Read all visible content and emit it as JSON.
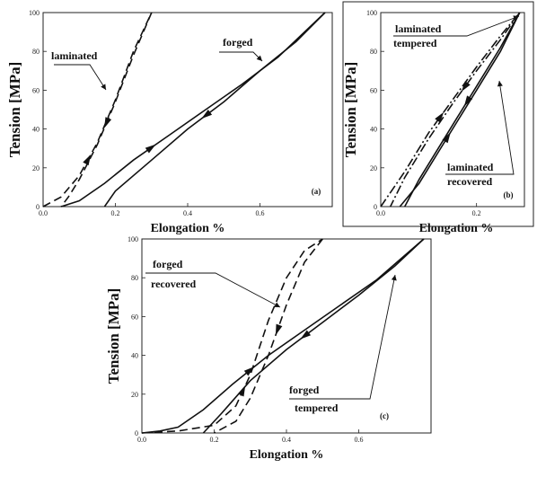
{
  "chart_data": [
    {
      "type": "line",
      "panel_label": "(a)",
      "xlabel": "Elongation %",
      "ylabel": "Tension [MPa]",
      "xlim": [
        0,
        0.8
      ],
      "ylim": [
        0,
        100
      ],
      "xticks": [
        "0.0",
        "0.2",
        "0.4",
        "0.6"
      ],
      "yticks": [
        "0",
        "20",
        "40",
        "60",
        "80",
        "100"
      ],
      "series": [
        {
          "name": "laminated",
          "style": "dashed",
          "loading": [
            [
              0.0,
              0
            ],
            [
              0.05,
              5
            ],
            [
              0.1,
              16
            ],
            [
              0.15,
              33
            ],
            [
              0.2,
              55
            ],
            [
              0.25,
              80
            ],
            [
              0.3,
              100
            ]
          ],
          "unloading": [
            [
              0.3,
              100
            ],
            [
              0.25,
              78
            ],
            [
              0.2,
              54
            ],
            [
              0.15,
              32
            ],
            [
              0.1,
              14
            ],
            [
              0.07,
              5
            ],
            [
              0.05,
              0
            ]
          ]
        },
        {
          "name": "forged",
          "style": "solid",
          "loading": [
            [
              0.05,
              0
            ],
            [
              0.1,
              3
            ],
            [
              0.17,
              12
            ],
            [
              0.25,
              24
            ],
            [
              0.35,
              37
            ],
            [
              0.45,
              50
            ],
            [
              0.55,
              63
            ],
            [
              0.65,
              77
            ],
            [
              0.78,
              100
            ]
          ],
          "unloading": [
            [
              0.78,
              100
            ],
            [
              0.7,
              85
            ],
            [
              0.6,
              70
            ],
            [
              0.5,
              54
            ],
            [
              0.4,
              40
            ],
            [
              0.3,
              24
            ],
            [
              0.2,
              8
            ],
            [
              0.17,
              0
            ]
          ]
        }
      ],
      "annotations": [
        {
          "text": "laminated"
        },
        {
          "text": "forged"
        }
      ]
    },
    {
      "type": "line",
      "panel_label": "(b)",
      "xlabel": "Elongation %",
      "ylabel": "Tension [MPa]",
      "xlim": [
        0,
        0.3
      ],
      "ylim": [
        0,
        100
      ],
      "xticks": [
        "0.0",
        "0.2"
      ],
      "yticks": [
        "0",
        "20",
        "40",
        "60",
        "80",
        "100"
      ],
      "series": [
        {
          "name": "laminated tempered",
          "style": "dash-dot",
          "loading": [
            [
              0.0,
              0
            ],
            [
              0.05,
              18
            ],
            [
              0.1,
              38
            ],
            [
              0.15,
              55
            ],
            [
              0.2,
              72
            ],
            [
              0.25,
              88
            ],
            [
              0.29,
              100
            ]
          ],
          "unloading": [
            [
              0.29,
              100
            ],
            [
              0.25,
              86
            ],
            [
              0.2,
              70
            ],
            [
              0.15,
              53
            ],
            [
              0.1,
              35
            ],
            [
              0.05,
              15
            ],
            [
              0.02,
              0
            ]
          ]
        },
        {
          "name": "laminated recovered",
          "style": "solid",
          "loading": [
            [
              0.04,
              0
            ],
            [
              0.08,
              12
            ],
            [
              0.12,
              28
            ],
            [
              0.16,
              44
            ],
            [
              0.2,
              60
            ],
            [
              0.25,
              80
            ],
            [
              0.29,
              100
            ]
          ],
          "unloading": [
            [
              0.29,
              100
            ],
            [
              0.25,
              82
            ],
            [
              0.2,
              62
            ],
            [
              0.16,
              46
            ],
            [
              0.12,
              30
            ],
            [
              0.08,
              14
            ],
            [
              0.05,
              0
            ]
          ]
        }
      ],
      "annotations": [
        {
          "text": "laminated"
        },
        {
          "text": "tempered"
        },
        {
          "text": "laminated"
        },
        {
          "text": "recovered"
        }
      ]
    },
    {
      "type": "line",
      "panel_label": "(c)",
      "xlabel": "Elongation %",
      "ylabel": "Tension [MPa]",
      "xlim": [
        0,
        0.8
      ],
      "ylim": [
        0,
        100
      ],
      "xticks": [
        "0.0",
        "0.2",
        "0.4",
        "0.6"
      ],
      "yticks": [
        "0",
        "20",
        "40",
        "60",
        "80",
        "100"
      ],
      "series": [
        {
          "name": "forged recovered",
          "style": "dashed",
          "loading": [
            [
              0.0,
              0
            ],
            [
              0.1,
              1
            ],
            [
              0.2,
              4
            ],
            [
              0.26,
              14
            ],
            [
              0.3,
              30
            ],
            [
              0.35,
              58
            ],
            [
              0.4,
              80
            ],
            [
              0.45,
              94
            ],
            [
              0.5,
              100
            ]
          ],
          "unloading": [
            [
              0.5,
              100
            ],
            [
              0.45,
              88
            ],
            [
              0.4,
              66
            ],
            [
              0.35,
              40
            ],
            [
              0.3,
              18
            ],
            [
              0.26,
              6
            ],
            [
              0.2,
              0
            ]
          ]
        },
        {
          "name": "forged tempered",
          "style": "solid",
          "loading": [
            [
              0.0,
              0
            ],
            [
              0.05,
              1
            ],
            [
              0.1,
              3
            ],
            [
              0.17,
              12
            ],
            [
              0.25,
              25
            ],
            [
              0.35,
              40
            ],
            [
              0.45,
              53
            ],
            [
              0.55,
              66
            ],
            [
              0.65,
              79
            ],
            [
              0.78,
              100
            ]
          ],
          "unloading": [
            [
              0.78,
              100
            ],
            [
              0.7,
              86
            ],
            [
              0.6,
              71
            ],
            [
              0.5,
              57
            ],
            [
              0.4,
              43
            ],
            [
              0.3,
              27
            ],
            [
              0.22,
              10
            ],
            [
              0.17,
              0
            ]
          ]
        }
      ],
      "annotations": [
        {
          "text": "forged"
        },
        {
          "text": "recovered"
        },
        {
          "text": "forged"
        },
        {
          "text": "tempered"
        }
      ]
    }
  ]
}
